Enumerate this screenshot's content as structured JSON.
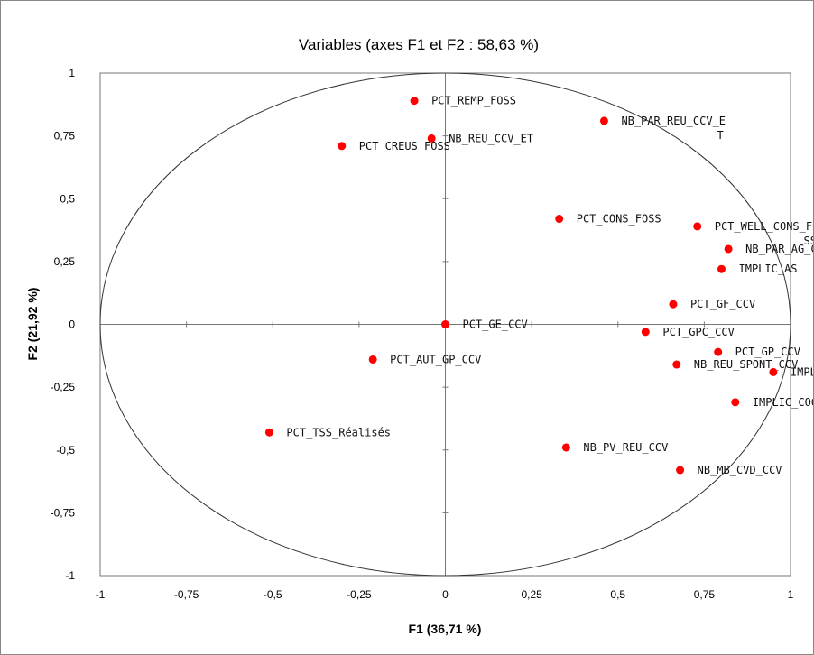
{
  "chart_data": {
    "type": "scatter",
    "title": "Variables (axes F1 et F2 : 58,63 %)",
    "xlabel": "F1 (36,71 %)",
    "ylabel": "F2 (21,92 %)",
    "xlim": [
      -1,
      1
    ],
    "ylim": [
      -1,
      1
    ],
    "x_ticks": [
      "-1",
      "-0,75",
      "-0,5",
      "-0,25",
      "0",
      "0,25",
      "0,5",
      "0,75",
      "1"
    ],
    "y_ticks": [
      "1",
      "0,75",
      "0,5",
      "0,25",
      "0",
      "-0,25",
      "-0,5",
      "-0,75",
      "-1"
    ],
    "x_tick_values": [
      -1,
      -0.75,
      -0.5,
      -0.25,
      0,
      0.25,
      0.5,
      0.75,
      1
    ],
    "y_tick_values": [
      1,
      0.75,
      0.5,
      0.25,
      0,
      -0.25,
      -0.5,
      -0.75,
      -1
    ],
    "correlation_circle": true,
    "grid": false,
    "point_color": "#ff0000",
    "points": [
      {
        "label": "PCT_REMP_FOSS",
        "x": -0.09,
        "y": 0.89
      },
      {
        "label": "NB_PAR_REU_CCV_E",
        "label2": "T",
        "x": 0.46,
        "y": 0.81
      },
      {
        "label": "NB_REU_CCV_ET",
        "x": -0.04,
        "y": 0.74
      },
      {
        "label": "PCT_CREUS_FOSS",
        "x": -0.3,
        "y": 0.71
      },
      {
        "label": "PCT_CONS_FOSS",
        "x": 0.33,
        "y": 0.42
      },
      {
        "label": "PCT_WELL_CONS_FO",
        "label2": "SS",
        "x": 0.73,
        "y": 0.39
      },
      {
        "label": "NB_PAR_AG_CCV",
        "x": 0.82,
        "y": 0.3
      },
      {
        "label": "IMPLIC_AS",
        "x": 0.8,
        "y": 0.22
      },
      {
        "label": "PCT_GF_CCV",
        "x": 0.66,
        "y": 0.08
      },
      {
        "label": "PCT_GE_CCV",
        "x": 0.0,
        "y": 0.0
      },
      {
        "label": "PCT_GPC_CCV",
        "x": 0.58,
        "y": -0.03
      },
      {
        "label": "PCT_GP_CCV",
        "x": 0.79,
        "y": -0.11
      },
      {
        "label": "PCT_AUT_GP_CCV",
        "x": -0.21,
        "y": -0.14
      },
      {
        "label": "NB_REU_SPONT_CCV",
        "x": 0.67,
        "y": -0.16
      },
      {
        "label": "IMPLIC_BE_CCV",
        "x": 0.95,
        "y": -0.19
      },
      {
        "label": "IMPLIC_COGES",
        "x": 0.84,
        "y": -0.31
      },
      {
        "label": "PCT_TSS_Réalisés",
        "x": -0.51,
        "y": -0.43
      },
      {
        "label": "NB_PV_REU_CCV",
        "x": 0.35,
        "y": -0.49
      },
      {
        "label": "NB_MB_CVD_CCV",
        "x": 0.68,
        "y": -0.58
      }
    ]
  }
}
